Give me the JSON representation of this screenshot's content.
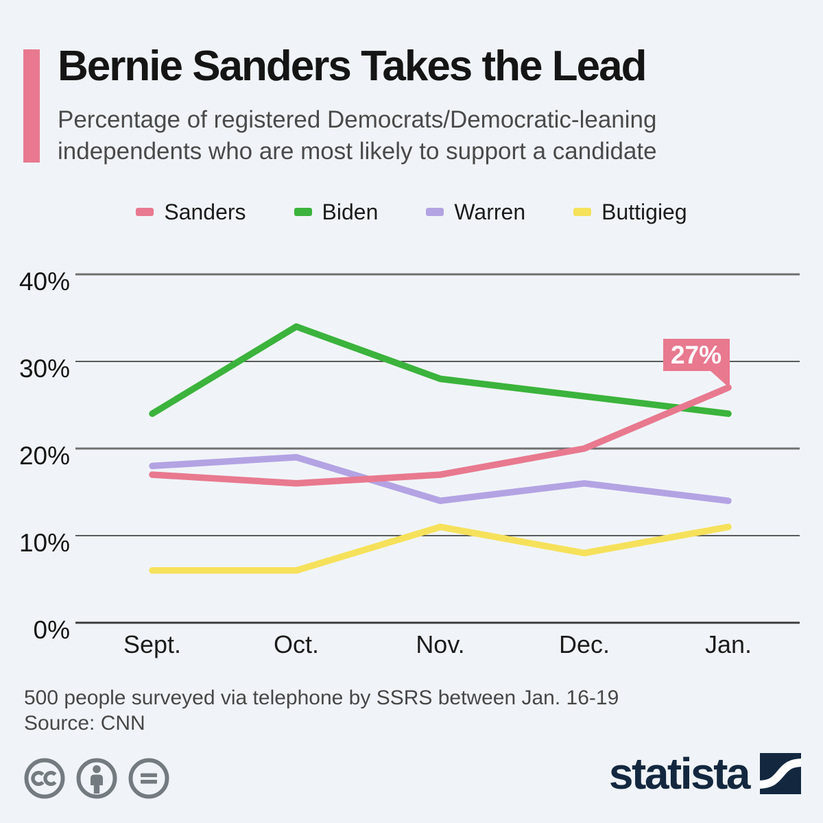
{
  "header": {
    "title": "Bernie Sanders Takes the Lead",
    "subtitle": "Percentage of registered Democrats/Democratic-leaning\nindependents who are most likely to support a candidate"
  },
  "legend": {
    "items": [
      {
        "label": "Sanders",
        "color": "#e8798f"
      },
      {
        "label": "Biden",
        "color": "#3bb33c"
      },
      {
        "label": "Warren",
        "color": "#b3a3e3"
      },
      {
        "label": "Buttigieg",
        "color": "#f6e15b"
      }
    ]
  },
  "chart_data": {
    "type": "line",
    "title": "Bernie Sanders Takes the Lead",
    "categories": [
      "Sept.",
      "Oct.",
      "Nov.",
      "Dec.",
      "Jan."
    ],
    "series": [
      {
        "name": "Sanders",
        "color": "#e8798f",
        "values": [
          17,
          16,
          17,
          20,
          27
        ]
      },
      {
        "name": "Biden",
        "color": "#3bb33c",
        "values": [
          24,
          34,
          28,
          26,
          24
        ]
      },
      {
        "name": "Warren",
        "color": "#b3a3e3",
        "values": [
          18,
          19,
          14,
          16,
          14
        ]
      },
      {
        "name": "Buttigieg",
        "color": "#f6e15b",
        "values": [
          6,
          6,
          11,
          8,
          11
        ]
      }
    ],
    "ylim": [
      0,
      40
    ],
    "y_ticks": [
      {
        "value": 40,
        "label": "40%"
      },
      {
        "value": 30,
        "label": "30%"
      },
      {
        "value": 20,
        "label": "20%"
      },
      {
        "value": 10,
        "label": "10%"
      },
      {
        "value": 0,
        "label": "0%"
      }
    ],
    "grid": true,
    "legend_position": "top",
    "annotation": {
      "series": "Sanders",
      "category": "Jan.",
      "value": 27,
      "label": "27%"
    }
  },
  "footer": {
    "note": "500 people surveyed via telephone by SSRS between Jan. 16-19",
    "source": "Source: CNN"
  },
  "branding": {
    "logo_text": "statista"
  },
  "colors": {
    "background": "#f0f4f8",
    "accent": "#e8798f",
    "icon_gray": "#747b80",
    "logo_navy": "#13283f"
  }
}
